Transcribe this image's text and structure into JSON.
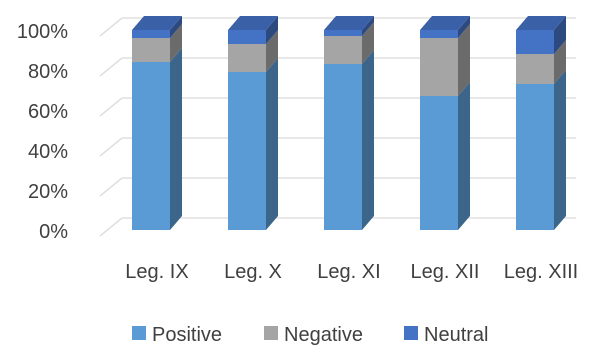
{
  "chart_data": {
    "type": "bar",
    "stacked": true,
    "percent": true,
    "style": "3d-column",
    "categories": [
      "Leg. IX",
      "Leg. X",
      "Leg. XI",
      "Leg. XII",
      "Leg. XIII"
    ],
    "series": [
      {
        "name": "Positive",
        "values": [
          84,
          79,
          83,
          67,
          73
        ]
      },
      {
        "name": "Negative",
        "values": [
          12,
          14,
          14,
          29,
          15
        ]
      },
      {
        "name": "Neutral",
        "values": [
          4,
          7,
          3,
          4,
          12
        ]
      }
    ],
    "ylim": [
      0,
      100
    ],
    "yticks": [
      "0%",
      "20%",
      "40%",
      "60%",
      "80%",
      "100%"
    ],
    "ytick_values": [
      0,
      20,
      40,
      60,
      80,
      100
    ],
    "grid": true,
    "legend": "bottom",
    "colors": {
      "Positive": "#5b9bd5",
      "Negative": "#a5a5a5",
      "Neutral": "#4472c4",
      "grid": "#d9d9d9",
      "text": "#404040"
    }
  }
}
